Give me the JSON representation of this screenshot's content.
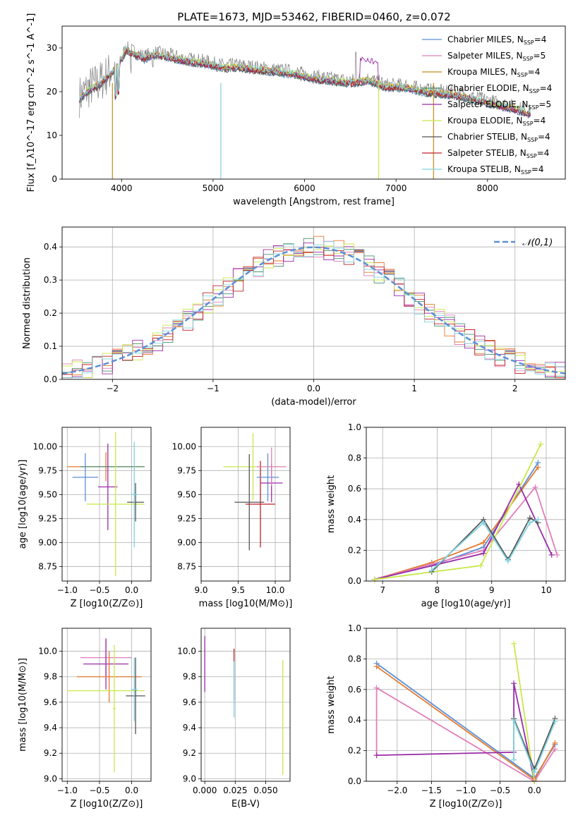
{
  "figure": {
    "title": "PLATE=1673, MJD=53462, FIBERID=0460, z=0.072"
  },
  "chart_data": [
    {
      "id": "spectrum",
      "type": "line",
      "xlabel": "wavelength [Angstrom, rest frame]",
      "ylabel": "Flux [f_λ10^-17 erg cm^-2 s^-1 A^-1]",
      "xlim": [
        3350,
        8850
      ],
      "ylim": [
        0,
        35
      ],
      "xticks": [
        4000,
        5000,
        6000,
        7000,
        8000
      ],
      "yticks": [
        0,
        10,
        20,
        30
      ],
      "legend_position": "top-right",
      "data_x": [
        3550,
        3650,
        3750,
        3850,
        3950,
        4050,
        4150,
        4250,
        4350,
        4500,
        4700,
        4900,
        5100,
        5300,
        5500,
        5700,
        5900,
        6100,
        6300,
        6500,
        6700,
        6900,
        7100,
        7300,
        7500,
        7700,
        7900,
        8100,
        8300,
        8450
      ],
      "data_y": [
        19,
        21,
        22,
        24,
        26,
        30,
        29,
        28,
        29,
        28.5,
        27.5,
        27,
        26,
        26,
        25.5,
        25,
        24.5,
        23.5,
        23,
        22.5,
        23,
        21.5,
        21.5,
        20.5,
        20,
        19.5,
        18.5,
        17.5,
        16.5,
        15.5
      ],
      "series": [
        {
          "name": "Chabrier MILES",
          "nssp": "4",
          "color": "#5b8fd6"
        },
        {
          "name": "Salpeter MILES",
          "nssp": "5",
          "color": "#e07fb8"
        },
        {
          "name": "Kroupa MILES",
          "nssp": "4",
          "color": "#c48a1c"
        },
        {
          "name": "Chabrier ELODIE",
          "nssp": "4",
          "color": "#4c8f6e"
        },
        {
          "name": "Salpeter ELODIE",
          "nssp": "5",
          "color": "#9b2ca8"
        },
        {
          "name": "Kroupa ELODIE",
          "nssp": "4",
          "color": "#c8e84a"
        },
        {
          "name": "Chabrier STELIB",
          "nssp": "4",
          "color": "#555555"
        },
        {
          "name": "Salpeter STELIB",
          "nssp": "4",
          "color": "#c0202a"
        },
        {
          "name": "Kroupa STELIB",
          "nssp": "4",
          "color": "#7ed3e0"
        }
      ]
    },
    {
      "id": "residuals",
      "type": "line",
      "xlabel": "(data-model)/error",
      "ylabel": "Normed distribution",
      "xlim": [
        -2.5,
        2.5
      ],
      "ylim": [
        0,
        0.46
      ],
      "xticks": [
        -2,
        -1,
        0,
        1,
        2
      ],
      "yticks": [
        0.0,
        0.1,
        0.2,
        0.3,
        0.4
      ],
      "grid": true,
      "legend_position": "top-right",
      "reference_curve": {
        "name": "𝒩(0,1)",
        "color": "#5b8fd6"
      },
      "hist_colors": [
        "#e37a2e",
        "#e07fb8",
        "#4c8f6e",
        "#9b2ca8",
        "#c8e84a",
        "#c0202a",
        "#7ed3e0"
      ]
    },
    {
      "id": "age-vs-Z",
      "type": "scatter",
      "xlabel": "Z [log10(Z/Z⊙)]",
      "ylabel": "age  [log10(age/yr)]",
      "xlim": [
        -1.08,
        0.3
      ],
      "ylim": [
        8.6,
        10.2
      ],
      "xticks": [
        -1.0,
        -0.5,
        0.0
      ],
      "yticks": [
        8.75,
        9.0,
        9.25,
        9.5,
        9.75,
        10.0
      ],
      "grid": true,
      "crosses": [
        {
          "x": -0.72,
          "y": 9.68,
          "xerr": 0.2,
          "yerr": 0.25,
          "color": "#5b8fd6"
        },
        {
          "x": -0.4,
          "y": 9.79,
          "xerr": 0.6,
          "yerr": 0.15,
          "color": "#e37a2e"
        },
        {
          "x": -0.3,
          "y": 9.79,
          "xerr": 0.5,
          "yerr": 0.0,
          "color": "#4c8f6e"
        },
        {
          "x": -0.37,
          "y": 9.58,
          "xerr": 0.15,
          "yerr": 0.45,
          "color": "#9b2ca8"
        },
        {
          "x": -0.25,
          "y": 9.4,
          "xerr": 0.45,
          "yerr": 0.75,
          "color": "#c8e84a"
        },
        {
          "x": 0.06,
          "y": 9.42,
          "xerr": 0.13,
          "yerr": 0.2,
          "color": "#555555"
        },
        {
          "x": 0.04,
          "y": 9.5,
          "xerr": 0.05,
          "yerr": 0.55,
          "color": "#7ed3e0"
        }
      ]
    },
    {
      "id": "age-vs-mass",
      "type": "scatter",
      "xlabel": "mass [log10(M/M⊙)]",
      "ylabel": "",
      "xlim": [
        9.0,
        10.2
      ],
      "ylim": [
        8.6,
        10.2
      ],
      "xticks": [
        9.0,
        9.5,
        10.0
      ],
      "yticks": [
        8.75,
        9.0,
        9.25,
        9.5,
        9.75,
        10.0
      ],
      "grid": true,
      "crosses": [
        {
          "x": 9.7,
          "y": 9.79,
          "xerr": 0.4,
          "yerr": 0.35,
          "color": "#c8e84a"
        },
        {
          "x": 9.8,
          "y": 9.4,
          "xerr": 0.2,
          "yerr": 0.45,
          "color": "#c0202a"
        },
        {
          "x": 9.9,
          "y": 9.68,
          "xerr": 0.15,
          "yerr": 0.25,
          "color": "#5b8fd6"
        },
        {
          "x": 9.95,
          "y": 9.62,
          "xerr": 0.15,
          "yerr": 0.2,
          "color": "#9b2ca8"
        },
        {
          "x": 9.95,
          "y": 9.79,
          "xerr": 0.2,
          "yerr": 0.2,
          "color": "#e07fb8"
        },
        {
          "x": 9.65,
          "y": 9.42,
          "xerr": 0.2,
          "yerr": 0.5,
          "color": "#555555"
        }
      ]
    },
    {
      "id": "weight-vs-age",
      "type": "line",
      "xlabel": "age  [log10(age/yr)]",
      "ylabel": "mass weight",
      "xlim": [
        6.7,
        10.35
      ],
      "ylim": [
        0,
        1.0
      ],
      "xticks": [
        7,
        8,
        9,
        10
      ],
      "yticks": [
        0.0,
        0.2,
        0.4,
        0.6,
        0.8,
        1.0
      ],
      "grid": true,
      "series": [
        {
          "color": "#5b8fd6",
          "x": [
            6.85,
            7.9,
            8.85,
            9.85
          ],
          "y": [
            0.01,
            0.1,
            0.22,
            0.77
          ]
        },
        {
          "color": "#e37a2e",
          "x": [
            6.85,
            7.9,
            8.85,
            9.85
          ],
          "y": [
            0.01,
            0.12,
            0.25,
            0.74
          ]
        },
        {
          "color": "#e07fb8",
          "x": [
            6.85,
            7.9,
            8.85,
            9.8,
            10.2
          ],
          "y": [
            0.01,
            0.11,
            0.2,
            0.61,
            0.17
          ]
        },
        {
          "color": "#9b2ca8",
          "x": [
            6.85,
            8.85,
            9.5,
            10.1
          ],
          "y": [
            0.01,
            0.18,
            0.63,
            0.17
          ]
        },
        {
          "color": "#c8e84a",
          "x": [
            6.85,
            8.8,
            9.9
          ],
          "y": [
            0.01,
            0.1,
            0.89
          ]
        },
        {
          "color": "#555555",
          "x": [
            7.9,
            8.85,
            9.3,
            9.7,
            9.85
          ],
          "y": [
            0.06,
            0.4,
            0.14,
            0.41,
            0.38
          ]
        },
        {
          "color": "#7ed3e0",
          "x": [
            7.9,
            8.85,
            9.3,
            9.7,
            9.85
          ],
          "y": [
            0.07,
            0.38,
            0.13,
            0.38,
            0.4
          ]
        }
      ]
    },
    {
      "id": "mass-vs-Z",
      "type": "scatter",
      "xlabel": "Z [log10(Z/Z⊙)]",
      "ylabel": "mass [log10(M/M⊙)]",
      "xlim": [
        -1.08,
        0.3
      ],
      "ylim": [
        8.98,
        10.18
      ],
      "xticks": [
        -1.0,
        -0.5,
        0.0
      ],
      "yticks": [
        9.0,
        9.2,
        9.4,
        9.6,
        9.8,
        10.0
      ],
      "grid": true,
      "crosses": [
        {
          "x": -0.4,
          "y": 9.95,
          "xerr": 0.4,
          "yerr": 0.15,
          "color": "#e07fb8"
        },
        {
          "x": -0.4,
          "y": 9.9,
          "xerr": 0.35,
          "yerr": 0.2,
          "color": "#9b2ca8"
        },
        {
          "x": -0.35,
          "y": 9.8,
          "xerr": 0.5,
          "yerr": 0.2,
          "color": "#e37a2e"
        },
        {
          "x": -0.4,
          "y": 9.69,
          "xerr": 0.6,
          "yerr": 0.0,
          "color": "#c8e84a"
        },
        {
          "x": 0.06,
          "y": 9.65,
          "xerr": 0.15,
          "yerr": 0.3,
          "color": "#555555"
        },
        {
          "x": 0.04,
          "y": 9.7,
          "xerr": 0.05,
          "yerr": 0.25,
          "color": "#7ed3e0"
        },
        {
          "x": -0.27,
          "y": 9.55,
          "xerr": 0.02,
          "yerr": 0.5,
          "color": "#c8e84a"
        }
      ]
    },
    {
      "id": "mass-vs-EBV",
      "type": "scatter",
      "xlabel": "E(B-V)",
      "ylabel": "",
      "xlim": [
        -0.003,
        0.07
      ],
      "ylim": [
        8.98,
        10.18
      ],
      "xticks": [
        0.0,
        0.025,
        0.05
      ],
      "yticks": [
        9.0,
        9.2,
        9.4,
        9.6,
        9.8,
        10.0
      ],
      "grid": true,
      "crosses": [
        {
          "x": 0.0,
          "y": 9.9,
          "xerr": 0.0,
          "yerr": 0.22,
          "color": "#9b2ca8"
        },
        {
          "x": 0.024,
          "y": 9.82,
          "xerr": 0.0,
          "yerr": 0.2,
          "color": "#c0202a"
        },
        {
          "x": 0.024,
          "y": 9.7,
          "xerr": 0.0,
          "yerr": 0.22,
          "color": "#7ed3e0"
        },
        {
          "x": 0.064,
          "y": 9.48,
          "xerr": 0.0,
          "yerr": 0.45,
          "color": "#c8e84a"
        }
      ]
    },
    {
      "id": "weight-vs-Z",
      "type": "line",
      "xlabel": "Z [log10(Z/Z⊙)]",
      "ylabel": "mass weight",
      "xlim": [
        -2.45,
        0.45
      ],
      "ylim": [
        0,
        1.0
      ],
      "xticks": [
        -2.0,
        -1.5,
        -1.0,
        -0.5,
        0.0
      ],
      "yticks": [
        0.0,
        0.2,
        0.4,
        0.6,
        0.8,
        1.0
      ],
      "grid": true,
      "series": [
        {
          "color": "#5b8fd6",
          "x": [
            -2.3,
            0.0,
            0.3
          ],
          "y": [
            0.77,
            0.02,
            0.24
          ]
        },
        {
          "color": "#e37a2e",
          "x": [
            -2.3,
            0.0,
            0.3
          ],
          "y": [
            0.75,
            0.01,
            0.25
          ]
        },
        {
          "color": "#e07fb8",
          "x": [
            -2.3,
            -2.3,
            0.0,
            0.3
          ],
          "y": [
            0.17,
            0.61,
            0.0,
            0.21
          ]
        },
        {
          "color": "#9b2ca8",
          "x": [
            -2.3,
            -0.3,
            -0.3,
            0.0
          ],
          "y": [
            0.17,
            0.19,
            0.64,
            0.0
          ]
        },
        {
          "color": "#c8e84a",
          "x": [
            -0.3,
            0.0
          ],
          "y": [
            0.9,
            0.0
          ]
        },
        {
          "color": "#555555",
          "x": [
            -0.3,
            0.0,
            0.3
          ],
          "y": [
            0.41,
            0.08,
            0.41
          ]
        },
        {
          "color": "#7ed3e0",
          "x": [
            -0.3,
            -0.3,
            0.0,
            0.3
          ],
          "y": [
            0.14,
            0.4,
            0.06,
            0.39
          ]
        }
      ]
    }
  ]
}
